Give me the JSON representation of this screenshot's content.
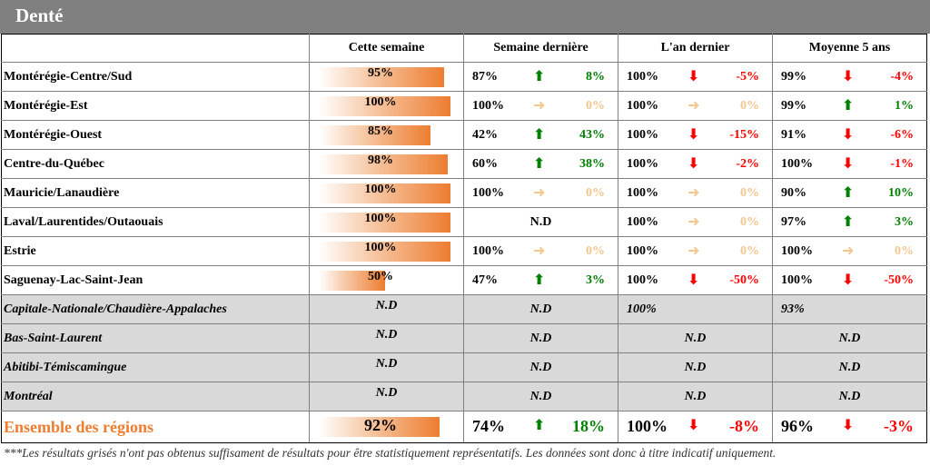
{
  "title": "Denté",
  "headers": [
    "Cette semaine",
    "Semaine dernière",
    "L'an dernier",
    "Moyenne 5 ans"
  ],
  "colors": {
    "up": "#008000",
    "down": "#ff0000",
    "flat": "#f4c78f",
    "bar": "#ed7d31",
    "grey_row": "#d9d9d9",
    "title_bar": "#808080"
  },
  "rows": [
    {
      "region": "Montérégie-Centre/Sud",
      "week": "95%",
      "week_value": 95,
      "last_week": {
        "v": "87%",
        "dir": "up",
        "d": "8%"
      },
      "last_year": {
        "v": "100%",
        "dir": "down",
        "d": "-5%"
      },
      "avg5": {
        "v": "99%",
        "dir": "down",
        "d": "-4%"
      }
    },
    {
      "region": "Montérégie-Est",
      "week": "100%",
      "week_value": 100,
      "last_week": {
        "v": "100%",
        "dir": "flat",
        "d": "0%"
      },
      "last_year": {
        "v": "100%",
        "dir": "flat",
        "d": "0%"
      },
      "avg5": {
        "v": "99%",
        "dir": "up",
        "d": "1%"
      }
    },
    {
      "region": "Montérégie-Ouest",
      "week": "85%",
      "week_value": 85,
      "last_week": {
        "v": "42%",
        "dir": "up",
        "d": "43%"
      },
      "last_year": {
        "v": "100%",
        "dir": "down",
        "d": "-15%"
      },
      "avg5": {
        "v": "91%",
        "dir": "down",
        "d": "-6%"
      }
    },
    {
      "region": "Centre-du-Québec",
      "week": "98%",
      "week_value": 98,
      "last_week": {
        "v": "60%",
        "dir": "up",
        "d": "38%"
      },
      "last_year": {
        "v": "100%",
        "dir": "down",
        "d": "-2%"
      },
      "avg5": {
        "v": "100%",
        "dir": "down",
        "d": "-1%"
      }
    },
    {
      "region": "Mauricie/Lanaudière",
      "week": "100%",
      "week_value": 100,
      "last_week": {
        "v": "100%",
        "dir": "flat",
        "d": "0%"
      },
      "last_year": {
        "v": "100%",
        "dir": "flat",
        "d": "0%"
      },
      "avg5": {
        "v": "90%",
        "dir": "up",
        "d": "10%"
      }
    },
    {
      "region": "Laval/Laurentides/Outaouais",
      "week": "100%",
      "week_value": 100,
      "last_week": {
        "nd": "N.D"
      },
      "last_year": {
        "v": "100%",
        "dir": "flat",
        "d": "0%"
      },
      "avg5": {
        "v": "97%",
        "dir": "up",
        "d": "3%"
      }
    },
    {
      "region": "Estrie",
      "week": "100%",
      "week_value": 100,
      "last_week": {
        "v": "100%",
        "dir": "flat",
        "d": "0%"
      },
      "last_year": {
        "v": "100%",
        "dir": "flat",
        "d": "0%"
      },
      "avg5": {
        "v": "100%",
        "dir": "flat",
        "d": "0%"
      }
    },
    {
      "region": "Saguenay-Lac-Saint-Jean",
      "week": "50%",
      "week_value": 50,
      "last_week": {
        "v": "47%",
        "dir": "up",
        "d": "3%"
      },
      "last_year": {
        "v": "100%",
        "dir": "down",
        "d": "-50%"
      },
      "avg5": {
        "v": "100%",
        "dir": "down",
        "d": "-50%"
      }
    }
  ],
  "grey_rows": [
    {
      "region": "Capitale-Nationale/Chaudière-Appalaches",
      "week": "N.D",
      "last_week": "N.D",
      "last_year": "100%",
      "avg5": "93%"
    },
    {
      "region": "Bas-Saint-Laurent",
      "week": "N.D",
      "last_week": "N.D",
      "last_year": "N.D",
      "avg5": "N.D"
    },
    {
      "region": "Abitibi-Témiscamingue",
      "week": "N.D",
      "last_week": "N.D",
      "last_year": "N.D",
      "avg5": "N.D"
    },
    {
      "region": "Montréal",
      "week": "N.D",
      "last_week": "N.D",
      "last_year": "N.D",
      "avg5": "N.D"
    }
  ],
  "total": {
    "region": "Ensemble des régions",
    "week": "92%",
    "week_value": 92,
    "last_week": {
      "v": "74%",
      "dir": "up",
      "d": "18%"
    },
    "last_year": {
      "v": "100%",
      "dir": "down",
      "d": "-8%"
    },
    "avg5": {
      "v": "96%",
      "dir": "down",
      "d": "-3%"
    }
  },
  "footnote": "***Les résultats grisés n'ont pas obtenus suffisament de résultats pour être statistiquement représentatifs. Les données sont donc à titre indicatif uniquement."
}
